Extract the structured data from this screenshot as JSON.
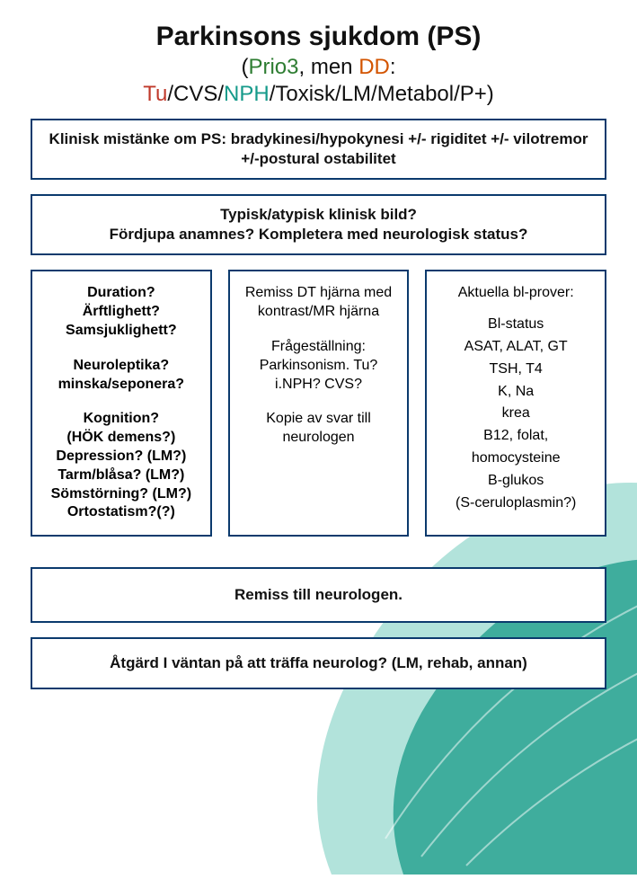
{
  "colors": {
    "border": "#0b3a6d",
    "title_black": "#111111",
    "seg_green": "#2e7d32",
    "seg_red": "#c0392b",
    "seg_orange": "#d35400",
    "seg_teal": "#159a8a",
    "deco_fill": "#2aa392",
    "deco_fill_light": "#7fd0c3"
  },
  "title": "Parkinsons sjukdom (PS)",
  "subtitle_segments": [
    {
      "text": "(",
      "color": "title_black"
    },
    {
      "text": "Prio3",
      "color": "seg_green"
    },
    {
      "text": ", men ",
      "color": "title_black"
    },
    {
      "text": "DD",
      "color": "seg_orange"
    },
    {
      "text": ":\n",
      "color": "title_black"
    },
    {
      "text": "Tu",
      "color": "seg_red"
    },
    {
      "text": "/CVS/",
      "color": "title_black"
    },
    {
      "text": "NPH",
      "color": "seg_teal"
    },
    {
      "text": "/Toxisk/LM/Metabol/P+)",
      "color": "title_black"
    }
  ],
  "box1": "Klinisk mistänke om PS: bradykinesi/hypokynesi +/- rigiditet +/- vilotremor +/-postural ostabilitet",
  "box2": "Typisk/atypisk klinisk bild?\nFördjupa anamnes? Kompletera med neurologisk status?",
  "colA": [
    "Duration?\nÄrftlighett?\nSamsjuklighett?",
    "Neuroleptika?\nminska/seponera?",
    "Kognition?\n(HÖK demens?)\nDepression? (LM?)\nTarm/blåsa? (LM?)\nSömstörning? (LM?)\nOrtostatism?(?)"
  ],
  "colB": [
    "Remiss DT hjärna med kontrast/MR hjärna",
    "Frågeställning:\nParkinsonism. Tu? i.NPH? CVS?",
    "Kopie av svar till neurologen"
  ],
  "colC_header": "Aktuella bl-prover:",
  "colC_items": [
    "Bl-status",
    "ASAT, ALAT, GT",
    "TSH, T4",
    "K, Na",
    "krea",
    "B12, folat,",
    "homocysteine",
    "B-glukos",
    "(S-ceruloplasmin?)"
  ],
  "box_remiss": "Remiss till neurologen.",
  "box_action": "Åtgärd I väntan på att träffa neurolog? (LM, rehab, annan)"
}
